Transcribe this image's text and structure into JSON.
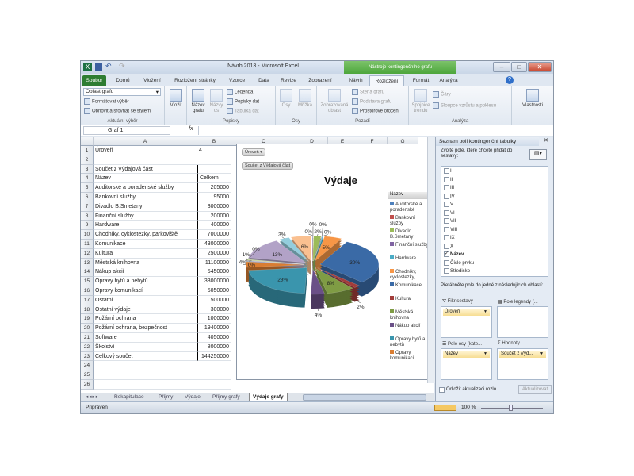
{
  "window": {
    "title": "Návrh 2013 - Microsoft Excel",
    "context_tab_header": "Nástroje kontingenčního grafu"
  },
  "tabs": [
    "Soubor",
    "Domů",
    "Vložení",
    "Rozložení stránky",
    "Vzorce",
    "Data",
    "Revize",
    "Zobrazení",
    "Návrh",
    "Rozložení",
    "Formát",
    "Analýza"
  ],
  "active_tab": "Rozložení",
  "ribbon": {
    "current_selection": {
      "dropdown": "Oblast grafu",
      "format": "Formátovat výběr",
      "reset": "Obnovit a srovnat se stylem",
      "label": "Aktuální výběr"
    },
    "insert": {
      "label": "Vložit"
    },
    "labels": {
      "chart_title": "Název grafu",
      "axis_titles": "Názvy os",
      "legend": "Legenda",
      "data_labels": "Popisky dat",
      "data_table": "Tabulka dat",
      "label": "Popisky"
    },
    "axes": {
      "axes": "Osy",
      "gridlines": "Mřížka",
      "label": "Osy"
    },
    "background": {
      "plot_area": "Zobrazovaná oblast",
      "wall": "Stěna grafu",
      "floor": "Podstava grafu",
      "rotation": "Prostorové otočení",
      "label": "Pozadí"
    },
    "analysis": {
      "trendline": "Spojnice trendu",
      "lines": "Čáry",
      "updown": "Sloupce vzrůstu a poklesu",
      "label": "Analýza"
    },
    "properties": {
      "label": "Vlastnosti"
    }
  },
  "formula_bar": {
    "name_box": "Graf 1",
    "fx": "fx",
    "formula": ""
  },
  "columns": [
    "A",
    "B",
    "C",
    "D",
    "E",
    "F",
    "G"
  ],
  "rows": [
    {
      "n": "1",
      "a": "Úroveň",
      "b": "4"
    },
    {
      "n": "2",
      "a": "",
      "b": ""
    },
    {
      "n": "3",
      "a": "Součet z Výdajová část",
      "b": ""
    },
    {
      "n": "4",
      "a": "Název",
      "b": "Celkem"
    },
    {
      "n": "5",
      "a": "Auditorské a poradenské služby",
      "b": "205000"
    },
    {
      "n": "6",
      "a": "Bankovní služby",
      "b": "95000"
    },
    {
      "n": "7",
      "a": "Divadlo B.Smetany",
      "b": "3000000"
    },
    {
      "n": "8",
      "a": "Finanční služby",
      "b": "200000"
    },
    {
      "n": "9",
      "a": "Hardware",
      "b": "400000"
    },
    {
      "n": "10",
      "a": "Chodníky, cyklostezky, parkoviště",
      "b": "7000000"
    },
    {
      "n": "11",
      "a": "Komunikace",
      "b": "43000000"
    },
    {
      "n": "12",
      "a": "Kultura",
      "b": "2500000"
    },
    {
      "n": "13",
      "a": "Městská knihovna",
      "b": "11100000"
    },
    {
      "n": "14",
      "a": "Nákup akcií",
      "b": "5450000"
    },
    {
      "n": "15",
      "a": "Opravy bytů a nebytů",
      "b": "33000000"
    },
    {
      "n": "16",
      "a": "Opravy komunikací",
      "b": "5050000"
    },
    {
      "n": "17",
      "a": "Ostatní",
      "b": "500000"
    },
    {
      "n": "18",
      "a": "Ostatní výdaje",
      "b": "300000"
    },
    {
      "n": "19",
      "a": "Požární ochrana",
      "b": "1000000"
    },
    {
      "n": "20",
      "a": "Požární ochrana, bezpečnost",
      "b": "19400000"
    },
    {
      "n": "21",
      "a": "Software",
      "b": "4050000"
    },
    {
      "n": "22",
      "a": "Školství",
      "b": "8000000"
    },
    {
      "n": "23",
      "a": "Celkový součet",
      "b": "144250000"
    },
    {
      "n": "24",
      "a": "",
      "b": ""
    },
    {
      "n": "25",
      "a": "",
      "b": ""
    },
    {
      "n": "26",
      "a": "",
      "b": ""
    }
  ],
  "chart_data": {
    "type": "pie",
    "subtype": "exploded 3-D pie",
    "title": "Výdaje",
    "filter_button": "Úroveň",
    "value_button": "Součet z Výdajová část",
    "legend_title": "Název",
    "legend_position": "right",
    "categories": [
      "Auditorské a poradenské služby",
      "Bankovní služby",
      "Divadlo B.Smetany",
      "Finanční služby",
      "Hardware",
      "Chodníky, cyklostezky, parkoviště",
      "Komunikace",
      "Kultura",
      "Městská knihovna",
      "Nákup akcií",
      "Opravy bytů a nebytů",
      "Opravy komunikací",
      "Ostatní",
      "Ostatní výdaje",
      "Požární ochrana",
      "Požární ochrana, bezpečnost",
      "Software",
      "Školství"
    ],
    "values": [
      205000,
      95000,
      3000000,
      200000,
      400000,
      7000000,
      43000000,
      2500000,
      11100000,
      5450000,
      33000000,
      5050000,
      500000,
      300000,
      1000000,
      19400000,
      4050000,
      8000000
    ],
    "labels": [
      "0%",
      "0%",
      "2%",
      "0%",
      "0%",
      "5%",
      "30%",
      "2%",
      "8%",
      "4%",
      "23%",
      "4%",
      "0%",
      "0%",
      "1%",
      "13%",
      "3%",
      "6%"
    ],
    "legend_visible": [
      "Auditorské a poradenské služby",
      "Bankovní služby",
      "Divadlo B.Smetany",
      "Finanční služby",
      "Hardware",
      "Chodníky, cyklostezky, parkoviště",
      "Komunikace",
      "Kultura",
      "Městská knihovna",
      "Nákup akcií",
      "Opravy bytů a nebytů",
      "Opravy komunikací"
    ],
    "colors": [
      "#4f81bd",
      "#c0504d",
      "#9bbb59",
      "#8064a2",
      "#4bacc6",
      "#f79646",
      "#3a6aa6",
      "#a23c3a",
      "#7f9c44",
      "#6a5087",
      "#3a95ad",
      "#d97d32",
      "#95b3d7",
      "#d99694",
      "#c3d69b",
      "#b2a2c7",
      "#93cddd",
      "#fac090"
    ]
  },
  "sheet_tabs": [
    "Rekapitulace",
    "Příjmy",
    "Výdaje",
    "Příjmy grafy",
    "Výdaje grafy"
  ],
  "active_sheet": "Výdaje grafy",
  "status": {
    "ready": "Připraven",
    "zoom": "100 %"
  },
  "pivot_panel": {
    "title": "Seznam polí kontingenční tabulky",
    "choose": "Zvolte pole, které chcete přidat do sestavy:",
    "fields": [
      {
        "name": "I",
        "checked": false
      },
      {
        "name": "II",
        "checked": false
      },
      {
        "name": "III",
        "checked": false
      },
      {
        "name": "IV",
        "checked": false
      },
      {
        "name": "V",
        "checked": false
      },
      {
        "name": "VI",
        "checked": false
      },
      {
        "name": "VII",
        "checked": false
      },
      {
        "name": "VIII",
        "checked": false
      },
      {
        "name": "IX",
        "checked": false
      },
      {
        "name": "X",
        "checked": false
      },
      {
        "name": "Název",
        "checked": true
      },
      {
        "name": "Číslo prvku",
        "checked": false
      },
      {
        "name": "Středisko",
        "checked": false
      }
    ],
    "drag_hint": "Přetáhněte pole do jedné z následujících oblastí:",
    "filter_label": "Filtr sestavy",
    "filter_item": "Úroveň",
    "legend_label": "Pole legendy (...",
    "axis_label": "Pole osy (kate...",
    "axis_item": "Název",
    "values_label": "Hodnoty",
    "values_item": "Součet z Výd...",
    "defer": "Odložit aktualizaci rozlo...",
    "update": "Aktualizovat"
  }
}
